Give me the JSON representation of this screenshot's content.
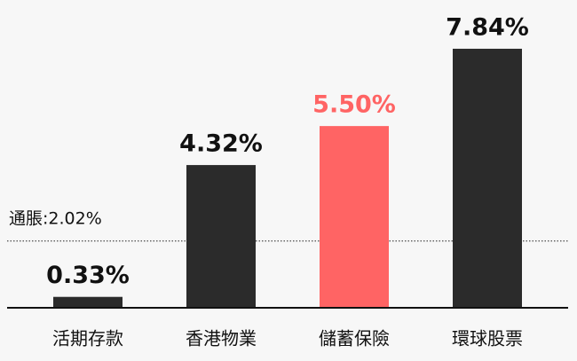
{
  "chart_data": {
    "type": "bar",
    "categories": [
      "活期存款",
      "香港物業",
      "儲蓄保險",
      "環球股票"
    ],
    "values": [
      0.33,
      4.32,
      5.5,
      7.84
    ],
    "value_labels": [
      "0.33%",
      "4.32%",
      "5.50%",
      "7.84%"
    ],
    "colors": [
      "#2b2b2b",
      "#2b2b2b",
      "#ff6464",
      "#2b2b2b"
    ],
    "label_colors": [
      "#111111",
      "#111111",
      "#ff6464",
      "#111111"
    ],
    "ylim": [
      0,
      8
    ],
    "reference_line": {
      "value": 2.02,
      "label": "通脹:2.02%"
    }
  }
}
